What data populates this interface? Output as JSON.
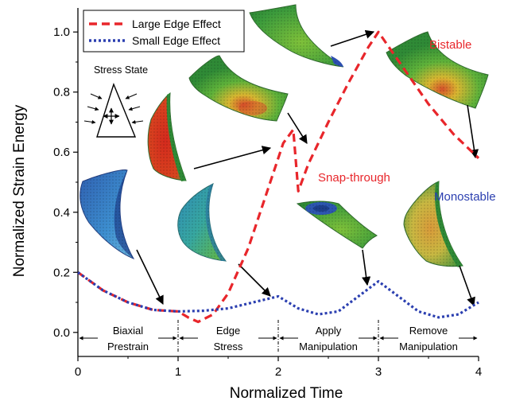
{
  "chart_data": {
    "type": "line",
    "title": "",
    "xlabel": "Normalized Time",
    "ylabel": "Normalized Strain Energy",
    "xlim": [
      0,
      4
    ],
    "ylim": [
      -0.08,
      1.08
    ],
    "x_ticks": [
      0,
      1,
      2,
      3,
      4
    ],
    "x_tick_labels": [
      "0",
      "1",
      "2",
      "3",
      "4"
    ],
    "y_ticks": [
      0.0,
      0.2,
      0.4,
      0.6,
      0.8,
      1.0
    ],
    "y_tick_labels": [
      "0.0",
      "0.2",
      "0.4",
      "0.6",
      "0.8",
      "1.0"
    ],
    "grid": false,
    "legend_position": "top-left",
    "series": [
      {
        "name": "Large Edge Effect",
        "color": "#e8262b",
        "dash": "dashed",
        "points": [
          [
            0.0,
            0.2
          ],
          [
            0.25,
            0.14
          ],
          [
            0.5,
            0.1
          ],
          [
            0.75,
            0.075
          ],
          [
            1.0,
            0.07
          ],
          [
            1.1,
            0.05
          ],
          [
            1.2,
            0.035
          ],
          [
            1.35,
            0.06
          ],
          [
            1.5,
            0.13
          ],
          [
            1.7,
            0.28
          ],
          [
            1.9,
            0.48
          ],
          [
            2.05,
            0.63
          ],
          [
            2.15,
            0.675
          ],
          [
            2.2,
            0.47
          ],
          [
            2.3,
            0.56
          ],
          [
            2.5,
            0.7
          ],
          [
            2.7,
            0.83
          ],
          [
            2.9,
            0.95
          ],
          [
            3.0,
            1.0
          ],
          [
            3.25,
            0.88
          ],
          [
            3.5,
            0.76
          ],
          [
            3.75,
            0.66
          ],
          [
            4.0,
            0.58
          ]
        ]
      },
      {
        "name": "Small Edge Effect",
        "color": "#2b3fb0",
        "dash": "dotted",
        "points": [
          [
            0.0,
            0.2
          ],
          [
            0.25,
            0.14
          ],
          [
            0.5,
            0.1
          ],
          [
            0.75,
            0.075
          ],
          [
            1.0,
            0.07
          ],
          [
            1.25,
            0.072
          ],
          [
            1.5,
            0.08
          ],
          [
            1.75,
            0.1
          ],
          [
            2.0,
            0.12
          ],
          [
            2.2,
            0.08
          ],
          [
            2.4,
            0.06
          ],
          [
            2.6,
            0.07
          ],
          [
            2.8,
            0.12
          ],
          [
            3.0,
            0.17
          ],
          [
            3.2,
            0.12
          ],
          [
            3.4,
            0.07
          ],
          [
            3.6,
            0.05
          ],
          [
            3.8,
            0.06
          ],
          [
            4.0,
            0.1
          ]
        ]
      }
    ],
    "phases": [
      {
        "from": 0,
        "to": 1,
        "line1": "Biaxial",
        "line2": "Prestrain"
      },
      {
        "from": 1,
        "to": 2,
        "line1": "Edge",
        "line2": "Stress"
      },
      {
        "from": 2,
        "to": 3,
        "line1": "Apply",
        "line2": "Manipulation"
      },
      {
        "from": 3,
        "to": 4,
        "line1": "Remove",
        "line2": "Manipulation"
      }
    ],
    "annotations": [
      {
        "key": "snap",
        "text": "Snap-through",
        "color": "#e8262b"
      },
      {
        "key": "bistable",
        "text": "Bistable",
        "color": "#e8262b"
      },
      {
        "key": "monostable",
        "text": "Monostable",
        "color": "#2b3fb0"
      },
      {
        "key": "stress",
        "text": "Stress State",
        "color": "#000000"
      }
    ]
  }
}
